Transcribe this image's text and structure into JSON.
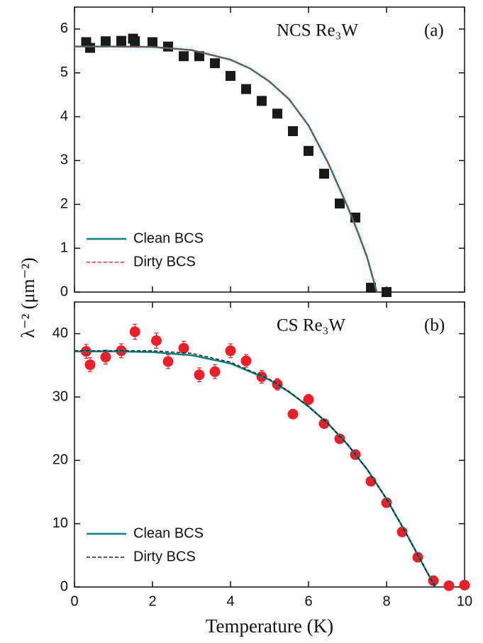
{
  "chart_data": [
    {
      "type": "scatter",
      "title": "NCS Re₃W",
      "label": "(a)",
      "ylabel": "λ⁻² (μm⁻²)",
      "xlim": [
        0,
        10
      ],
      "xticks": [
        0,
        2,
        4,
        6,
        8,
        10
      ],
      "show_xtick_labels": false,
      "ylim": [
        0,
        6.5
      ],
      "yticks": [
        0,
        1,
        2,
        3,
        4,
        5,
        6
      ],
      "legend": "lower left",
      "series": [
        {
          "marker": "square",
          "color": "#1a1a1a",
          "x": [
            0.3,
            0.4,
            0.8,
            1.2,
            1.5,
            1.55,
            2.0,
            2.4,
            2.8,
            3.2,
            3.6,
            4.0,
            4.4,
            4.8,
            5.2,
            5.6,
            6.0,
            6.4,
            6.8,
            7.2,
            7.6,
            8.0
          ],
          "values": [
            5.7,
            5.57,
            5.72,
            5.73,
            5.78,
            5.72,
            5.7,
            5.6,
            5.38,
            5.38,
            5.22,
            4.93,
            4.63,
            4.36,
            4.07,
            3.67,
            3.22,
            2.7,
            2.02,
            1.7,
            0.1,
            0.0
          ]
        },
        {
          "name": "Clean BCS",
          "line": "solid",
          "color": "#00807f",
          "x": [
            0,
            1,
            2,
            3,
            4,
            4.5,
            5,
            5.5,
            6,
            6.5,
            7,
            7.25,
            7.5,
            7.75
          ],
          "values": [
            5.6,
            5.6,
            5.59,
            5.52,
            5.3,
            5.1,
            4.8,
            4.4,
            3.8,
            2.95,
            1.95,
            1.4,
            0.8,
            0
          ]
        },
        {
          "name": "Dirty BCS",
          "line": "dashed",
          "color": "#e0302a",
          "x": [
            0,
            1,
            2,
            3,
            4,
            4.5,
            5,
            5.5,
            6,
            6.5,
            7,
            7.25,
            7.5,
            7.75
          ],
          "values": [
            5.6,
            5.6,
            5.59,
            5.52,
            5.3,
            5.1,
            4.8,
            4.4,
            3.8,
            2.95,
            1.95,
            1.4,
            0.8,
            0
          ]
        }
      ]
    },
    {
      "type": "scatter",
      "title": "CS Re₃W",
      "label": "(b)",
      "xlabel": "Temperature (K)",
      "xlim": [
        0,
        10
      ],
      "xticks": [
        0,
        2,
        4,
        6,
        8,
        10
      ],
      "show_xtick_labels": true,
      "ylim": [
        0,
        45
      ],
      "yticks": [
        0,
        10,
        20,
        30,
        40
      ],
      "legend": "lower left",
      "series": [
        {
          "marker": "circle",
          "color": "#e8202a",
          "x": [
            0.3,
            0.4,
            0.8,
            1.2,
            1.55,
            2.1,
            2.4,
            2.8,
            3.2,
            3.6,
            4.0,
            4.4,
            4.8,
            5.2,
            5.6,
            6.0,
            6.4,
            6.8,
            7.2,
            7.6,
            8.0,
            8.4,
            8.8,
            9.2,
            9.6,
            10.0
          ],
          "values": [
            37.2,
            35.1,
            36.3,
            37.3,
            40.3,
            38.9,
            35.6,
            37.7,
            33.5,
            34.0,
            37.3,
            35.7,
            33.2,
            32.0,
            27.3,
            29.6,
            25.8,
            23.4,
            20.9,
            16.7,
            13.3,
            8.7,
            4.7,
            1.0,
            0.2,
            0.3
          ],
          "errors": [
            1.1,
            1.1,
            1.1,
            1.1,
            1.2,
            1.2,
            1.1,
            1.1,
            1.1,
            1.1,
            1.1,
            1.0,
            1.0,
            0.9,
            0.6,
            0.8,
            0.6,
            0.6,
            0.5,
            0.5,
            0.5,
            0.4,
            0.4,
            0.3,
            0.2,
            0.2
          ]
        },
        {
          "name": "Clean BCS",
          "line": "solid",
          "color": "#00807f",
          "x": [
            0,
            1,
            2,
            3,
            4,
            5,
            5.5,
            6,
            6.5,
            7,
            7.5,
            8,
            8.5,
            9,
            9.25
          ],
          "values": [
            37.2,
            37.2,
            37.1,
            36.6,
            35.3,
            32.7,
            30.8,
            28.5,
            25.8,
            22.5,
            18.6,
            13.9,
            8.5,
            2.8,
            0
          ]
        },
        {
          "name": "Dirty BCS",
          "line": "dashed",
          "color": "#222222",
          "x": [
            0,
            1,
            2,
            3,
            4,
            5,
            5.5,
            6,
            6.5,
            7,
            7.5,
            8,
            8.5,
            9,
            9.25
          ],
          "values": [
            37.3,
            37.3,
            37.3,
            36.9,
            35.5,
            32.8,
            30.9,
            28.5,
            25.8,
            22.5,
            18.6,
            13.9,
            8.5,
            2.8,
            0
          ]
        }
      ]
    }
  ]
}
